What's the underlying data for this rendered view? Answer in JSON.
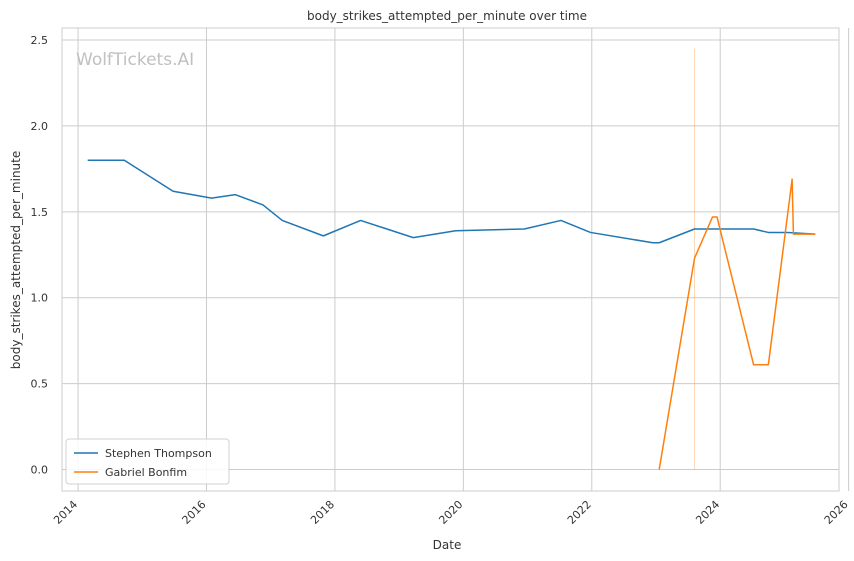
{
  "chart_data": {
    "type": "line",
    "title": "body_strikes_attempted_per_minute over time",
    "xlabel": "Date",
    "ylabel": "body_strikes_attempted_per_minute",
    "watermark": "WolfTickets.AI",
    "xlim": [
      2013.75,
      2025.85
    ],
    "ylim": [
      -0.125,
      2.57
    ],
    "x_ticks": [
      "2014",
      "2016",
      "2018",
      "2020",
      "2022",
      "2024",
      "2026"
    ],
    "y_ticks": [
      "0.0",
      "0.5",
      "1.0",
      "1.5",
      "2.0",
      "2.5"
    ],
    "grid": true,
    "legend_position": "lower-left",
    "colors": {
      "series_1": "#1f77b4",
      "series_2": "#ff7f0e",
      "grid": "#cccccc",
      "axes": "#cccccc",
      "watermark": "#c0c0c0"
    },
    "series": [
      {
        "name": "Stephen Thompson",
        "color": "#1f77b4",
        "x": [
          2014.15,
          2014.72,
          2015.48,
          2016.08,
          2016.45,
          2016.88,
          2017.18,
          2017.82,
          2018.4,
          2019.22,
          2019.88,
          2020.95,
          2021.52,
          2021.98,
          2022.95,
          2023.05,
          2023.6,
          2024.52,
          2024.75,
          2025.05,
          2025.48
        ],
        "y": [
          1.8,
          1.8,
          1.62,
          1.58,
          1.6,
          1.54,
          1.45,
          1.36,
          1.45,
          1.35,
          1.39,
          1.4,
          1.45,
          1.38,
          1.32,
          1.32,
          1.4,
          1.4,
          1.38,
          1.38,
          1.37
        ]
      },
      {
        "name": "Gabriel Bonfim",
        "color": "#ff7f0e",
        "x": [
          2023.05,
          2023.6,
          2023.88,
          2023.95,
          2024.52,
          2024.75,
          2025.12,
          2025.14,
          2025.48
        ],
        "y": [
          0.0,
          1.23,
          1.47,
          1.47,
          0.61,
          0.61,
          1.69,
          1.37,
          1.37
        ]
      }
    ],
    "annotations": [
      {
        "type": "vertical-line",
        "x": 2023.6,
        "y_range": [
          0.0,
          2.45
        ],
        "color": "#ff7f0e"
      }
    ]
  }
}
